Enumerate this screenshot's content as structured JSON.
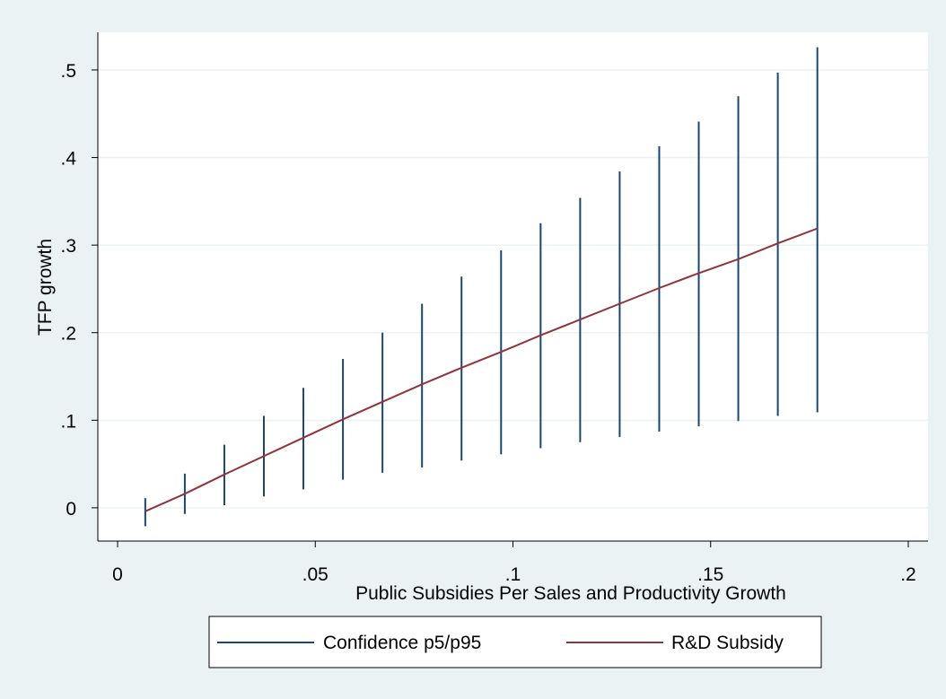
{
  "colors": {
    "outer_background": "#eaf2f3",
    "plot_background": "#ffffff",
    "gridline": "#eaf2f3",
    "confidence": "#1a476f",
    "subsidy": "#90353b",
    "axis": "#000000"
  },
  "chart_data": {
    "type": "line",
    "title": "",
    "xlabel": "Public Subsidies Per Sales and Productivity Growth",
    "ylabel": "TFP growth",
    "xlim": [
      -0.005,
      0.205
    ],
    "ylim": [
      -0.038,
      0.543
    ],
    "x_ticks": [
      {
        "value": 0,
        "label": "0"
      },
      {
        "value": 0.05,
        "label": ".05"
      },
      {
        "value": 0.1,
        "label": ".1"
      },
      {
        "value": 0.15,
        "label": ".15"
      },
      {
        "value": 0.2,
        "label": ".2"
      }
    ],
    "y_ticks": [
      {
        "value": 0,
        "label": "0"
      },
      {
        "value": 0.1,
        "label": ".1"
      },
      {
        "value": 0.2,
        "label": ".2"
      },
      {
        "value": 0.3,
        "label": ".3"
      },
      {
        "value": 0.4,
        "label": ".4"
      },
      {
        "value": 0.5,
        "label": ".5"
      }
    ],
    "grid": "horizontal",
    "legend_position": "bottom",
    "series": [
      {
        "name": "Confidence p5/p95",
        "kind": "range",
        "x": [
          0.007,
          0.017,
          0.027,
          0.037,
          0.047,
          0.057,
          0.067,
          0.077,
          0.087,
          0.097,
          0.107,
          0.117,
          0.127,
          0.137,
          0.147,
          0.157,
          0.167,
          0.177
        ],
        "low": [
          -0.021,
          -0.007,
          0.003,
          0.013,
          0.021,
          0.032,
          0.04,
          0.046,
          0.054,
          0.061,
          0.068,
          0.075,
          0.081,
          0.087,
          0.093,
          0.099,
          0.105,
          0.109
        ],
        "high": [
          0.011,
          0.039,
          0.072,
          0.105,
          0.137,
          0.17,
          0.2,
          0.233,
          0.264,
          0.294,
          0.325,
          0.354,
          0.384,
          0.413,
          0.441,
          0.47,
          0.497,
          0.526
        ]
      },
      {
        "name": "R&D Subsidy",
        "kind": "line",
        "x": [
          0.007,
          0.017,
          0.027,
          0.037,
          0.047,
          0.057,
          0.067,
          0.077,
          0.087,
          0.097,
          0.107,
          0.117,
          0.127,
          0.137,
          0.147,
          0.157,
          0.167,
          0.177
        ],
        "y": [
          -0.004,
          0.016,
          0.038,
          0.059,
          0.08,
          0.101,
          0.121,
          0.141,
          0.16,
          0.178,
          0.197,
          0.215,
          0.233,
          0.251,
          0.268,
          0.284,
          0.302,
          0.319
        ]
      }
    ]
  }
}
